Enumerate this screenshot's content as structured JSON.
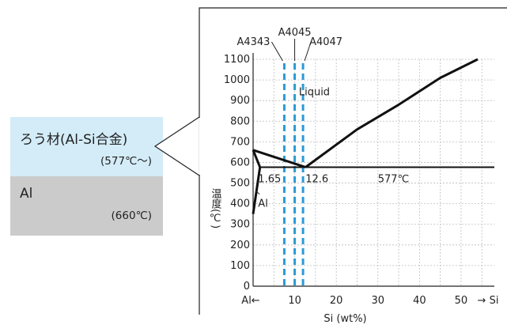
{
  "callout": {
    "braze_layer": {
      "name": "ろう材(Al-Si合金)",
      "temp": "(577℃〜)",
      "color": "#d3ecf8"
    },
    "base_layer": {
      "name": "Al",
      "temp": "(660℃)",
      "color": "#cbcbcb"
    }
  },
  "chart_data": {
    "type": "line",
    "title": "",
    "xlabel": "Si (wt%)",
    "ylabel": "温度(℃)",
    "xlim": [
      0,
      58
    ],
    "ylim": [
      0,
      1100
    ],
    "y_ticks": [
      "0",
      "100",
      "200",
      "300",
      "400",
      "500",
      "600",
      "700",
      "800",
      "900",
      "1000",
      "1100"
    ],
    "x_tick_values": [
      10,
      20,
      30,
      40,
      50
    ],
    "x_left_label": "Al←",
    "x_right_label": "→ Si",
    "grid": true,
    "series": [
      {
        "values": [
          [
            0,
            660
          ],
          [
            12.6,
            577
          ]
        ]
      },
      {
        "values": [
          [
            12.6,
            577
          ],
          [
            25,
            760
          ],
          [
            35,
            880
          ],
          [
            45,
            1010
          ],
          [
            54,
            1100
          ]
        ]
      },
      {
        "values": [
          [
            0,
            660
          ],
          [
            1.65,
            577
          ]
        ]
      },
      {
        "values": [
          [
            1.65,
            577
          ],
          [
            58,
            577
          ]
        ]
      },
      {
        "values": [
          [
            0,
            350
          ],
          [
            1.65,
            577
          ]
        ]
      }
    ],
    "alloy_lines": [
      {
        "name": "A4343",
        "si": 7.5,
        "label_pos": "upper-left",
        "color": "#2a9ad6"
      },
      {
        "name": "A4045",
        "si": 10,
        "label_pos": "top",
        "color": "#2a9ad6"
      },
      {
        "name": "A4047",
        "si": 12,
        "label_pos": "upper-right",
        "color": "#2a9ad6"
      }
    ],
    "annotations": [
      {
        "text": "Liquid",
        "x": 11,
        "y": 940
      },
      {
        "text": "1.65",
        "x": 1.2,
        "y": 520
      },
      {
        "text": "12.6",
        "x": 12.6,
        "y": 520
      },
      {
        "text": "577℃",
        "x": 30,
        "y": 520
      },
      {
        "text": "Al",
        "x": 1.2,
        "y": 400
      }
    ]
  }
}
